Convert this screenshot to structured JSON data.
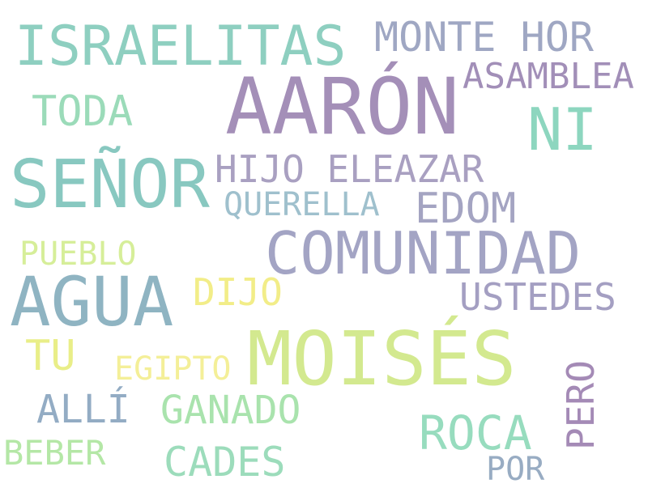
{
  "words": [
    {
      "text": "AARÓN",
      "color": "#a48fb8"
    },
    {
      "text": "MOISÉS",
      "color": "#d3e98f"
    },
    {
      "text": "COMUNIDAD",
      "color": "#a3a4c4"
    },
    {
      "text": "AGUA",
      "color": "#8fb4c2"
    },
    {
      "text": "SEÑOR",
      "color": "#88c8c0"
    },
    {
      "text": "ISRAELITAS",
      "color": "#8ecfc0"
    },
    {
      "text": "NI",
      "color": "#8dd6bf"
    },
    {
      "text": "MONTE HOR",
      "color": "#9fa7c3"
    },
    {
      "text": "ASAMBLEA",
      "color": "#a28fb8"
    },
    {
      "text": "TODA",
      "color": "#9bdbb9"
    },
    {
      "text": "HIJO ELEAZAR",
      "color": "#a9a0c1"
    },
    {
      "text": "EDOM",
      "color": "#a4a4c2"
    },
    {
      "text": "QUERELLA",
      "color": "#9fc0cd"
    },
    {
      "text": "PUEBLO",
      "color": "#d6ee99"
    },
    {
      "text": "DIJO",
      "color": "#f2ed88"
    },
    {
      "text": "USTEDES",
      "color": "#a49fc2"
    },
    {
      "text": "TU",
      "color": "#e9ee88"
    },
    {
      "text": "EGIPTO",
      "color": "#f4ef98"
    },
    {
      "text": "ALLÍ",
      "color": "#93acc4"
    },
    {
      "text": "GANADO",
      "color": "#a9e3ad"
    },
    {
      "text": "ROCA",
      "color": "#97dcbe"
    },
    {
      "text": "PERO",
      "color": "#a48ab6"
    },
    {
      "text": "BEBER",
      "color": "#b4e7a6"
    },
    {
      "text": "CADES",
      "color": "#9cdcbb"
    },
    {
      "text": "POR",
      "color": "#98acc3"
    }
  ]
}
